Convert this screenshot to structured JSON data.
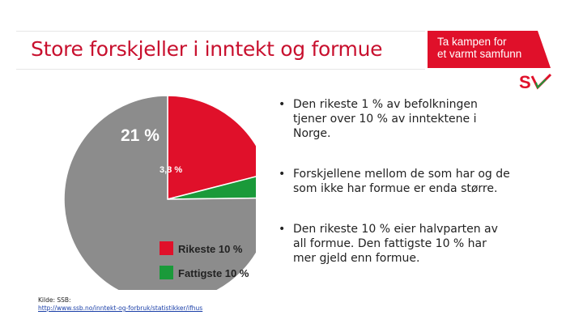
{
  "slide": {
    "title": "Store forskjeller i inntekt og formue",
    "banner_line1": "Ta kampen for",
    "banner_line2": "et varmt samfunn",
    "logo_text": "SV",
    "bullets": [
      "Den rikeste 1 % av befolkningen tjener over 10 % av inntektene i Norge.",
      "Forskjellene mellom de som har og de som ikke har formue er enda større.",
      "Den rikeste 10 % eier halvparten av all formue. Den fattigste 10 % har mer gjeld enn formue."
    ],
    "source_label": "Kilde: SSB:",
    "source_link": "http://www.ssb.no/inntekt-og-forbruk/statistikker/ifhus"
  },
  "chart_data": {
    "type": "pie",
    "slices": [
      {
        "label": "Rikeste 10 %",
        "value": 21,
        "value_label": "21 %",
        "color": "#e0102a"
      },
      {
        "label": "Fattigste 10 %",
        "value": 3.8,
        "value_label": "3,8 %",
        "color": "#1a9a3a"
      },
      {
        "label": "",
        "value": 75.2,
        "value_label": "",
        "color": "#8c8c8c"
      }
    ],
    "legend": [
      {
        "label": "Rikeste 10 %",
        "color": "#e0102a"
      },
      {
        "label": "Fattigste 10 %",
        "color": "#1a9a3a"
      }
    ],
    "legend_position": "bottom-right"
  },
  "colors": {
    "accent": "#c8102e",
    "banner": "#e0102a",
    "logo_green": "#1a9a3a"
  }
}
